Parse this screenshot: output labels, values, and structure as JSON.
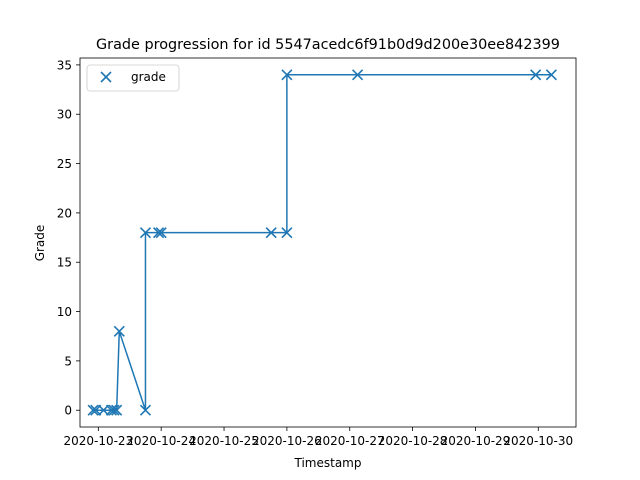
{
  "chart_data": {
    "type": "line",
    "title": "Grade progression for id 5547acedc6f91b0d9d200e30ee842399",
    "xlabel": "Timestamp",
    "ylabel": "Grade",
    "xlim": [
      "2020-10-22T17:00",
      "2020-10-30T14:24"
    ],
    "ylim": [
      -1.7,
      35.7
    ],
    "grid": false,
    "legend": {
      "position": "top-left",
      "entries": [
        "grade"
      ]
    },
    "color": "#1f77b4",
    "x_ticks": [
      "2020-10-23",
      "2020-10-24",
      "2020-10-25",
      "2020-10-26",
      "2020-10-27",
      "2020-10-28",
      "2020-10-29",
      "2020-10-30"
    ],
    "y_ticks": [
      "0",
      "5",
      "10",
      "15",
      "20",
      "25",
      "30",
      "35"
    ],
    "series": [
      {
        "name": "grade",
        "marker": "x",
        "points": [
          {
            "t": "2020-10-22T22:00",
            "grade": 0
          },
          {
            "t": "2020-10-22T23:00",
            "grade": 0
          },
          {
            "t": "2020-10-23T02:00",
            "grade": 0
          },
          {
            "t": "2020-10-23T05:00",
            "grade": 0
          },
          {
            "t": "2020-10-23T06:00",
            "grade": 0
          },
          {
            "t": "2020-10-23T07:00",
            "grade": 0
          },
          {
            "t": "2020-10-23T08:00",
            "grade": 8
          },
          {
            "t": "2020-10-23T18:00",
            "grade": 0
          },
          {
            "t": "2020-10-23T18:00",
            "grade": 18
          },
          {
            "t": "2020-10-23T23:00",
            "grade": 18
          },
          {
            "t": "2020-10-24T00:00",
            "grade": 18
          },
          {
            "t": "2020-10-25T18:00",
            "grade": 18
          },
          {
            "t": "2020-10-26T00:00",
            "grade": 18
          },
          {
            "t": "2020-10-26T00:00",
            "grade": 34
          },
          {
            "t": "2020-10-27T03:00",
            "grade": 34
          },
          {
            "t": "2020-10-29T23:00",
            "grade": 34
          },
          {
            "t": "2020-10-30T05:00",
            "grade": 34
          }
        ]
      }
    ]
  }
}
